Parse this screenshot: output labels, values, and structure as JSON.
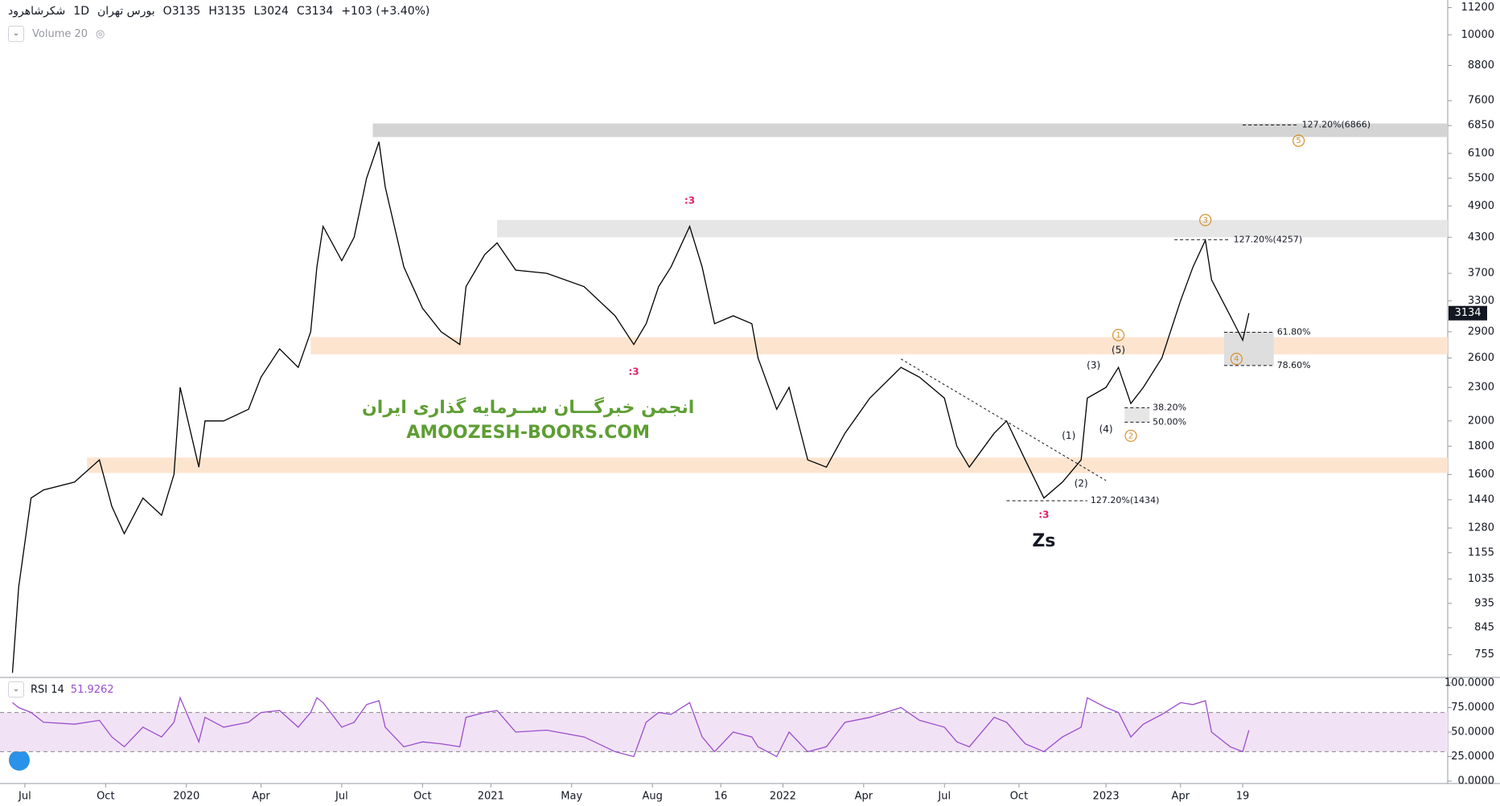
{
  "header": {
    "symbol": "شکرشاهرود",
    "interval": "1D",
    "exchange": "بورس تهران",
    "ohlc": [
      "O3135",
      "H3135",
      "L3024",
      "C3134"
    ],
    "change": "+103 (+3.40%)",
    "volume": "Volume 20"
  },
  "chart_data": [
    {
      "type": "line",
      "log_scale": true,
      "color": "#000000",
      "x": [
        2,
        3,
        5,
        7,
        12,
        16,
        18,
        20,
        23,
        26,
        28,
        29,
        32,
        33,
        36,
        40,
        42,
        45,
        48,
        50,
        51,
        52,
        55,
        57,
        59,
        61,
        62,
        65,
        68,
        71,
        74,
        75,
        78,
        80,
        83,
        88,
        94,
        99,
        102,
        104,
        106,
        108,
        111,
        113,
        115,
        118,
        121,
        122,
        125,
        127,
        130,
        133,
        136,
        140,
        145,
        148,
        152,
        154,
        156,
        160,
        162,
        165,
        168,
        171,
        174,
        175,
        178,
        180,
        182,
        184,
        187,
        190,
        192,
        194,
        195,
        198,
        200,
        201
      ],
      "values": [
        700,
        1000,
        1450,
        1500,
        1550,
        1700,
        1400,
        1250,
        1450,
        1350,
        1600,
        2300,
        1650,
        2000,
        2000,
        2100,
        2400,
        2700,
        2500,
        2900,
        3800,
        4500,
        3900,
        4300,
        5500,
        6400,
        5300,
        3800,
        3200,
        2900,
        2750,
        3500,
        4000,
        4200,
        3750,
        3700,
        3500,
        3100,
        2750,
        3000,
        3500,
        3800,
        4500,
        3800,
        3000,
        3100,
        3000,
        2600,
        2100,
        2300,
        1700,
        1650,
        1900,
        2200,
        2500,
        2400,
        2200,
        1800,
        1650,
        1900,
        2000,
        1700,
        1450,
        1550,
        1700,
        2200,
        2300,
        2500,
        2150,
        2300,
        2600,
        3300,
        3800,
        4250,
        3600,
        3100,
        2800,
        3134
      ],
      "xlim": [
        0,
        233
      ],
      "xticks": [
        {
          "value": 4,
          "label": "Jul"
        },
        {
          "value": 17,
          "label": "Oct"
        },
        {
          "value": 30,
          "label": "2020"
        },
        {
          "value": 42,
          "label": "Apr"
        },
        {
          "value": 55,
          "label": "Jul"
        },
        {
          "value": 68,
          "label": "Oct"
        },
        {
          "value": 79,
          "label": "2021"
        },
        {
          "value": 92,
          "label": "May"
        },
        {
          "value": 105,
          "label": "Aug"
        },
        {
          "value": 116,
          "label": "16"
        },
        {
          "value": 126,
          "label": "2022"
        },
        {
          "value": 139,
          "label": "Apr"
        },
        {
          "value": 152,
          "label": "Jul"
        },
        {
          "value": 164,
          "label": "Oct"
        },
        {
          "value": 178,
          "label": "2023"
        },
        {
          "value": 190,
          "label": "Apr"
        },
        {
          "value": 200,
          "label": "19"
        }
      ],
      "ylim": [
        689,
        11560
      ],
      "yticks": [
        755,
        845,
        935,
        1035,
        1155,
        1280,
        1440,
        1600,
        1800,
        2000,
        2300,
        2600,
        2900,
        3300,
        3700,
        4300,
        4900,
        5500,
        6100,
        6850,
        7600,
        8800,
        10000,
        11200
      ],
      "zones": [
        {
          "from": 6530,
          "to": 6910,
          "start": 60,
          "color": "#d4d4d4"
        },
        {
          "from": 4300,
          "to": 4620,
          "start": 80,
          "color": "#e6e6e6"
        },
        {
          "from": 2640,
          "to": 2835,
          "start": 50,
          "color": "#fde4cf"
        },
        {
          "from": 1610,
          "to": 1717,
          "start": 14,
          "color": "#fde4cf"
        },
        {
          "from": 2520,
          "to": 2900,
          "start": 197,
          "end": 205,
          "color": "#dedede"
        },
        {
          "from": 1990,
          "to": 2113,
          "start": 181,
          "end": 185,
          "color": "#e6e6e6"
        }
      ],
      "levels": [
        {
          "label": "127.20%(6866)",
          "value": 6866,
          "from": 200,
          "to": 209
        },
        {
          "label": "127.20%(4257)",
          "value": 4257,
          "from": 189,
          "to": 198
        },
        {
          "label": "127.20%(1434)",
          "value": 1434,
          "from": 162,
          "to": 175
        },
        {
          "label": "61.80%",
          "value": 2894,
          "from": 197,
          "to": 205
        },
        {
          "label": "78.60%",
          "value": 2520,
          "from": 197,
          "to": 205
        },
        {
          "label": "38.20%",
          "value": 2113,
          "from": 181,
          "to": 185
        },
        {
          "label": "50.00%",
          "value": 1990,
          "from": 181,
          "to": 185
        }
      ],
      "trendline": {
        "x": [
          145,
          178
        ],
        "y": [
          2590,
          1560
        ]
      },
      "annotations": [
        {
          "text": ":3",
          "x": 111,
          "y": 5000,
          "color": "#e91e63",
          "bold": true
        },
        {
          "text": ":3",
          "x": 102,
          "y": 2450,
          "color": "#e91e63",
          "bold": true
        },
        {
          "text": ":3",
          "x": 168,
          "y": 1350,
          "color": "#e91e63",
          "bold": true
        },
        {
          "text": "Zs",
          "x": 168,
          "y": 1210,
          "color": "#131722",
          "bold": true,
          "big": true
        },
        {
          "text": "5",
          "x": 209,
          "y": 6430,
          "color": "#d4912f",
          "circle": true
        },
        {
          "text": "3",
          "x": 194,
          "y": 4620,
          "color": "#d4912f",
          "circle": true
        },
        {
          "text": "1",
          "x": 180,
          "y": 2860,
          "color": "#d4912f",
          "circle": true
        },
        {
          "text": "2",
          "x": 182,
          "y": 1880,
          "color": "#d4912f",
          "circle": true
        },
        {
          "text": "4",
          "x": 199,
          "y": 2590,
          "color": "#d4912f",
          "circle": true
        },
        {
          "text": "(1)",
          "x": 172,
          "y": 1880,
          "color": "#131722"
        },
        {
          "text": "(2)",
          "x": 174,
          "y": 1540,
          "color": "#131722"
        },
        {
          "text": "(3)",
          "x": 176,
          "y": 2520,
          "color": "#131722"
        },
        {
          "text": "(4)",
          "x": 178,
          "y": 1930,
          "color": "#131722"
        },
        {
          "text": "(5)",
          "x": 180,
          "y": 2685,
          "color": "#131722"
        },
        {
          "text": "انجمن خبرگـــان ســرمایه گذاری ایران",
          "x": 85,
          "y": 2110,
          "color": "#5e9e34",
          "bold": true,
          "big": true
        },
        {
          "text": "AMOOZESH-BOORS.COM",
          "x": 85,
          "y": 1900,
          "color": "#5e9e34",
          "bold": true,
          "big": true
        }
      ]
    },
    {
      "type": "line",
      "title": "RSI 14",
      "color": "#9c4dcc",
      "x": [
        2,
        3,
        5,
        7,
        12,
        16,
        18,
        20,
        23,
        26,
        28,
        29,
        32,
        33,
        36,
        40,
        42,
        45,
        48,
        50,
        51,
        52,
        55,
        57,
        59,
        61,
        62,
        65,
        68,
        71,
        74,
        75,
        78,
        80,
        83,
        88,
        94,
        99,
        102,
        104,
        106,
        108,
        111,
        113,
        115,
        118,
        121,
        122,
        125,
        127,
        130,
        133,
        136,
        140,
        145,
        148,
        152,
        154,
        156,
        160,
        162,
        165,
        168,
        171,
        174,
        175,
        178,
        180,
        182,
        184,
        187,
        190,
        192,
        194,
        195,
        198,
        200,
        201
      ],
      "values": [
        80,
        75,
        70,
        60,
        58,
        62,
        45,
        35,
        55,
        45,
        60,
        85,
        40,
        65,
        55,
        60,
        70,
        72,
        55,
        70,
        85,
        80,
        55,
        60,
        78,
        82,
        55,
        35,
        40,
        38,
        35,
        65,
        70,
        72,
        50,
        52,
        45,
        30,
        25,
        60,
        70,
        68,
        80,
        45,
        30,
        50,
        45,
        35,
        25,
        50,
        30,
        35,
        60,
        65,
        75,
        62,
        55,
        40,
        35,
        65,
        60,
        38,
        30,
        45,
        55,
        85,
        75,
        70,
        45,
        58,
        68,
        80,
        78,
        82,
        50,
        35,
        30,
        51.9262
      ],
      "ylim": [
        0,
        100
      ],
      "yticks": [
        {
          "value": 0,
          "label": "0.0000"
        },
        {
          "value": 25,
          "label": "25.0000"
        },
        {
          "value": 50,
          "label": "50.0000"
        },
        {
          "value": 75,
          "label": "75.0000"
        },
        {
          "value": 100,
          "label": "100.0000"
        }
      ],
      "band": [
        30,
        70
      ],
      "band_color": "#f1e3f5"
    }
  ]
}
